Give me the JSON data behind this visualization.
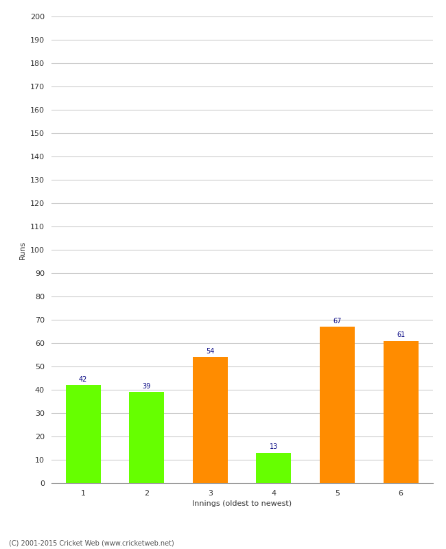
{
  "categories": [
    "1",
    "2",
    "3",
    "4",
    "5",
    "6"
  ],
  "values": [
    42,
    39,
    54,
    13,
    67,
    61
  ],
  "bar_colors": [
    "#66ff00",
    "#66ff00",
    "#ff8c00",
    "#66ff00",
    "#ff8c00",
    "#ff8c00"
  ],
  "xlabel": "Innings (oldest to newest)",
  "ylabel": "Runs",
  "ylim": [
    0,
    200
  ],
  "yticks": [
    0,
    10,
    20,
    30,
    40,
    50,
    60,
    70,
    80,
    90,
    100,
    110,
    120,
    130,
    140,
    150,
    160,
    170,
    180,
    190,
    200
  ],
  "label_color": "#000080",
  "label_fontsize": 7,
  "background_color": "#ffffff",
  "footer": "(C) 2001-2015 Cricket Web (www.cricketweb.net)",
  "bar_width": 0.55,
  "grid_color": "#cccccc",
  "tick_fontsize": 8,
  "axis_label_fontsize": 8
}
